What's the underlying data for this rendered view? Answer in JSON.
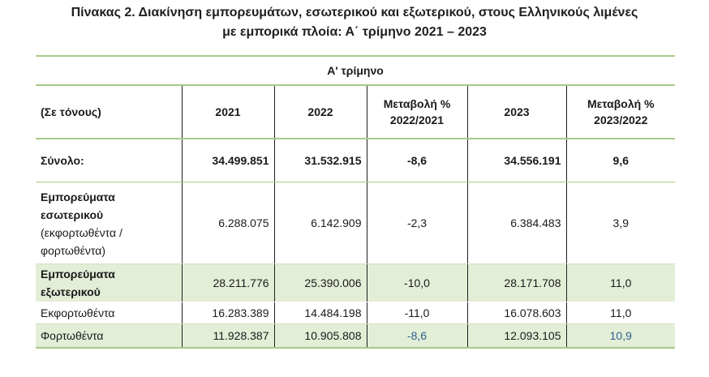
{
  "title": {
    "line1": "Πίνακας 2. Διακίνηση εμπορευμάτων, εσωτερικού και εξωτερικού, στους Ελληνικούς λιμένες",
    "line2": "με εμπορικά πλοία: Α΄ τρίμηνο 2021 – 2023"
  },
  "table": {
    "quarter_header": "Α' τρίμηνο",
    "headers": {
      "label": "(Σε τόνους)",
      "y2021": "2021",
      "y2022": "2022",
      "chg1_line1": "Μεταβολή %",
      "chg1_line2": "2022/2021",
      "y2023": "2023",
      "chg2_line1": "Μεταβολή %",
      "chg2_line2": "2023/2022"
    },
    "rows": {
      "total": {
        "label": "Σύνολο:",
        "y2021": "34.499.851",
        "y2022": "31.532.915",
        "chg1": "-8,6",
        "y2023": "34.556.191",
        "chg2": "9,6"
      },
      "domestic": {
        "label_bold_1": "Εμπορεύματα",
        "label_bold_2": "εσωτερικού",
        "label_note_1": "(εκφορτωθέντα /",
        "label_note_2": "φορτωθέντα)",
        "y2021": "6.288.075",
        "y2022": "6.142.909",
        "chg1": "-2,3",
        "y2023": "6.384.483",
        "chg2": "3,9"
      },
      "foreign": {
        "label_1": "Εμπορεύματα",
        "label_2": "εξωτερικού",
        "y2021": "28.211.776",
        "y2022": "25.390.006",
        "chg1": "-10,0",
        "y2023": "28.171.708",
        "chg2": "11,0"
      },
      "unloaded": {
        "label": "Εκφορτωθέντα",
        "y2021": "16.283.389",
        "y2022": "14.484.198",
        "chg1": "-11,0",
        "y2023": "16.078.603",
        "chg2": "11,0"
      },
      "loaded": {
        "label": "Φορτωθέντα",
        "y2021": "11.928.387",
        "y2022": "10.905.808",
        "chg1": "-8,6",
        "y2023": "12.093.105",
        "chg2": "10,9"
      }
    }
  },
  "colors": {
    "accent_green": "#a8c88a",
    "row_shade": "#e3eed7",
    "blue_value": "#2f5f8f"
  }
}
